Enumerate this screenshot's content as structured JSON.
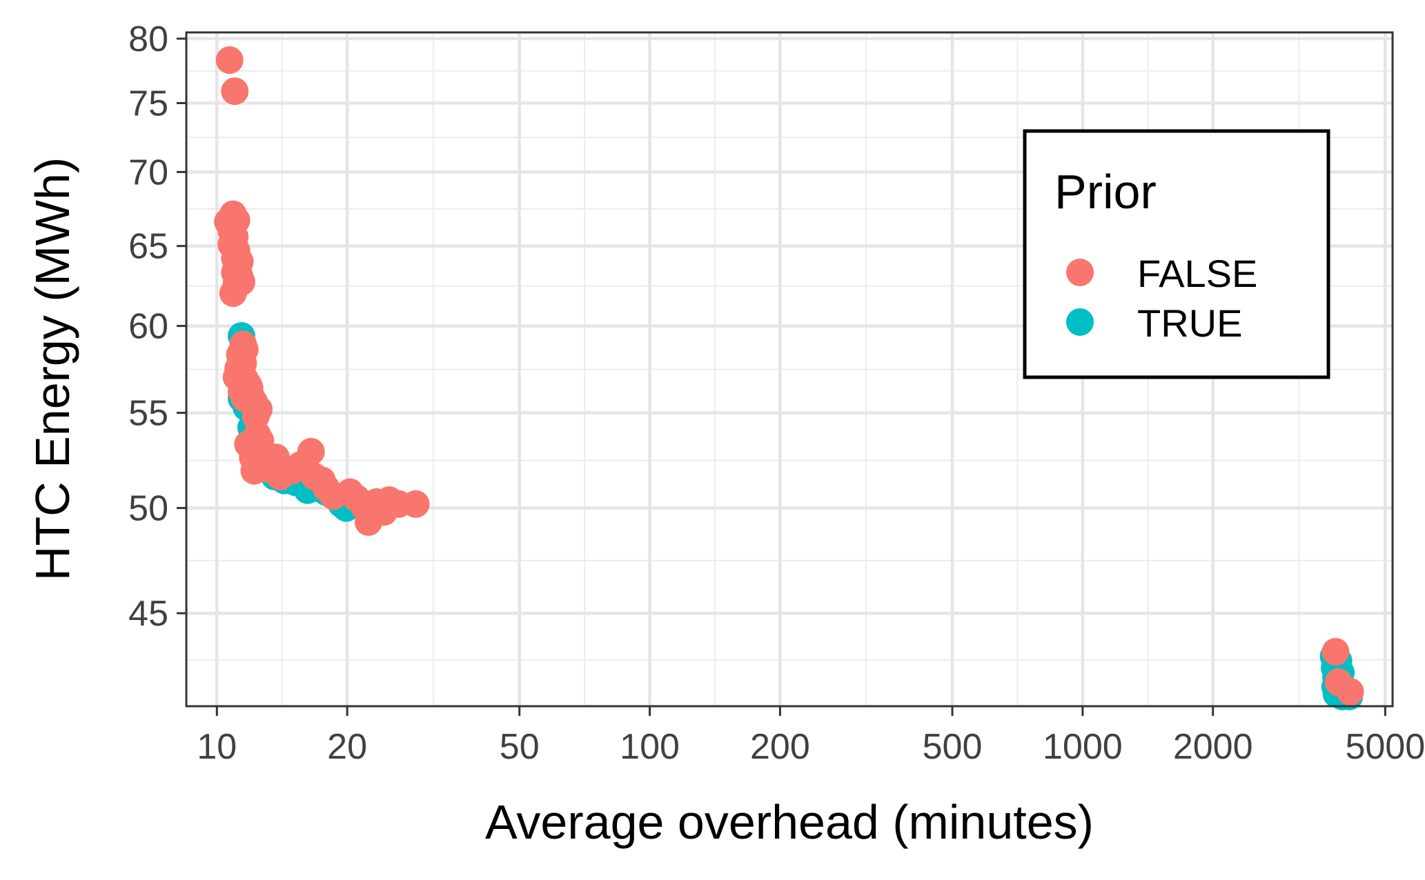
{
  "chart_data": {
    "type": "scatter",
    "xlabel": "Average overhead (minutes)",
    "ylabel": "HTC Energy (MWh)",
    "x_scale": "log",
    "y_scale": "log",
    "xlim": [
      8.5,
      5200
    ],
    "ylim": [
      41.0,
      80.5
    ],
    "x_ticks": [
      10,
      20,
      50,
      100,
      200,
      500,
      1000,
      2000,
      5000
    ],
    "x_tick_labels": [
      "10",
      "20",
      "50",
      "100",
      "200",
      "500",
      "1000",
      "2000",
      "5000"
    ],
    "y_ticks": [
      45,
      50,
      55,
      60,
      65,
      70,
      75,
      80
    ],
    "y_tick_labels": [
      "45",
      "50",
      "55",
      "60",
      "65",
      "70",
      "75",
      "80"
    ],
    "grid": true,
    "legend": {
      "title": "Prior",
      "position": "top-right",
      "entries": [
        {
          "label": "FALSE",
          "color": "#F8766D"
        },
        {
          "label": "TRUE",
          "color": "#00BFC4"
        }
      ]
    },
    "series": [
      {
        "name": "TRUE",
        "color": "#00BFC4",
        "points": [
          [
            11.4,
            59.4
          ],
          [
            11.3,
            57.0
          ],
          [
            11.5,
            56.5
          ],
          [
            11.4,
            55.8
          ],
          [
            11.7,
            55.3
          ],
          [
            12.0,
            54.2
          ],
          [
            12.2,
            53.5
          ],
          [
            12.5,
            52.7
          ],
          [
            13.0,
            52.2
          ],
          [
            13.6,
            51.6
          ],
          [
            14.3,
            51.4
          ],
          [
            15.2,
            51.3
          ],
          [
            16.2,
            50.9
          ],
          [
            17.0,
            51.0
          ],
          [
            17.9,
            50.8
          ],
          [
            19.4,
            50.2
          ],
          [
            19.9,
            50.0
          ],
          [
            21.5,
            50.1
          ],
          [
            3800,
            43.1
          ],
          [
            3820,
            42.6
          ],
          [
            3850,
            42.2
          ],
          [
            3830,
            41.8
          ],
          [
            3860,
            41.5
          ],
          [
            3900,
            42.9
          ],
          [
            3880,
            41.9
          ],
          [
            3910,
            41.6
          ],
          [
            3940,
            41.9
          ],
          [
            3950,
            42.4
          ],
          [
            3980,
            41.4
          ],
          [
            4080,
            41.6
          ],
          [
            4130,
            41.4
          ]
        ]
      },
      {
        "name": "FALSE",
        "color": "#F8766D",
        "points": [
          [
            10.7,
            78.3
          ],
          [
            11.0,
            75.9
          ],
          [
            10.6,
            66.6
          ],
          [
            10.9,
            67.1
          ],
          [
            11.1,
            66.7
          ],
          [
            10.8,
            66.0
          ],
          [
            11.0,
            65.6
          ],
          [
            10.8,
            65.1
          ],
          [
            11.1,
            64.7
          ],
          [
            11.0,
            64.2
          ],
          [
            11.3,
            64.0
          ],
          [
            11.2,
            63.6
          ],
          [
            11.0,
            63.3
          ],
          [
            11.3,
            63.0
          ],
          [
            11.1,
            62.6
          ],
          [
            11.4,
            62.7
          ],
          [
            10.9,
            62.0
          ],
          [
            11.5,
            58.9
          ],
          [
            11.3,
            58.3
          ],
          [
            11.6,
            58.6
          ],
          [
            11.2,
            57.5
          ],
          [
            11.5,
            57.8
          ],
          [
            11.1,
            57.0
          ],
          [
            11.6,
            56.9
          ],
          [
            11.8,
            56.6
          ],
          [
            11.4,
            56.2
          ],
          [
            11.9,
            56.4
          ],
          [
            11.6,
            55.8
          ],
          [
            12.0,
            55.9
          ],
          [
            12.2,
            55.6
          ],
          [
            12.5,
            55.2
          ],
          [
            12.3,
            54.8
          ],
          [
            12.4,
            53.8
          ],
          [
            12.6,
            53.5
          ],
          [
            11.8,
            53.3
          ],
          [
            12.1,
            52.6
          ],
          [
            12.5,
            52.4
          ],
          [
            12.2,
            51.9
          ],
          [
            13.1,
            52.0
          ],
          [
            13.7,
            52.6
          ],
          [
            14.0,
            51.6
          ],
          [
            14.9,
            51.9
          ],
          [
            15.6,
            52.2
          ],
          [
            16.5,
            52.9
          ],
          [
            16.8,
            51.6
          ],
          [
            17.5,
            51.4
          ],
          [
            17.9,
            51.0
          ],
          [
            18.6,
            50.6
          ],
          [
            20.3,
            50.8
          ],
          [
            21.0,
            50.5
          ],
          [
            22.0,
            50.0
          ],
          [
            22.4,
            49.3
          ],
          [
            23.4,
            50.3
          ],
          [
            24.3,
            49.8
          ],
          [
            25.0,
            50.4
          ],
          [
            26.3,
            50.2
          ],
          [
            28.8,
            50.2
          ],
          [
            23.8,
            50.1
          ],
          [
            3840,
            43.3
          ],
          [
            3900,
            42.0
          ],
          [
            4150,
            41.6
          ]
        ]
      }
    ]
  }
}
